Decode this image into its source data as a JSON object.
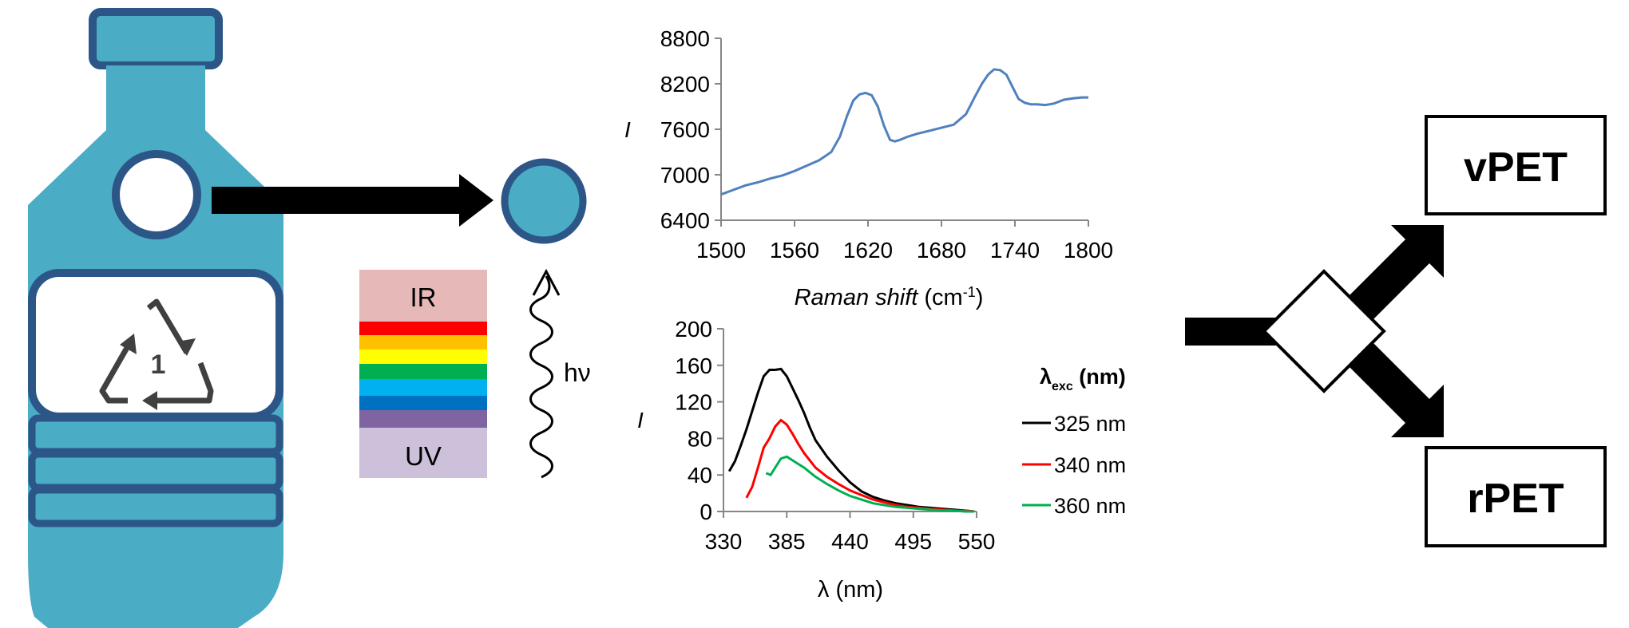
{
  "colors": {
    "bottle_fill": "#4bacc6",
    "bottle_outline": "#2c5687",
    "arrow": "#000000",
    "raman_line": "#4f81bd",
    "series_325": "#000000",
    "series_340": "#ff0000",
    "series_360": "#00b050"
  },
  "bottle": {
    "recycle_code": "1"
  },
  "spectrum": {
    "top_label": "IR",
    "bottom_label": "UV"
  },
  "photon": {
    "label": "hν"
  },
  "outputs": {
    "top": "vPET",
    "bottom": "rPET"
  },
  "chart_data": [
    {
      "type": "line",
      "ylabel": "I",
      "xlabel_italic": "Raman shift",
      "xlabel_unit": " (cm",
      "xlabel_sup": "-1",
      "xlabel_close": ")",
      "xlim": [
        1500,
        1800
      ],
      "ylim": [
        6400,
        8800
      ],
      "x_ticks": [
        "1500",
        "1560",
        "1620",
        "1680",
        "1740",
        "1800"
      ],
      "y_ticks": [
        "8800",
        "8200",
        "7600",
        "7000",
        "6400"
      ],
      "series": [
        {
          "x": [
            1500,
            1510,
            1520,
            1530,
            1540,
            1550,
            1560,
            1570,
            1580,
            1590,
            1597,
            1603,
            1608,
            1613,
            1618,
            1623,
            1628,
            1633,
            1638,
            1642,
            1646,
            1652,
            1660,
            1670,
            1680,
            1690,
            1700,
            1707,
            1713,
            1718,
            1723,
            1728,
            1733,
            1738,
            1743,
            1748,
            1753,
            1758,
            1765,
            1772,
            1780,
            1788,
            1795,
            1800
          ],
          "y": [
            6740,
            6800,
            6860,
            6900,
            6950,
            6990,
            7050,
            7120,
            7190,
            7300,
            7500,
            7780,
            7980,
            8060,
            8080,
            8050,
            7900,
            7650,
            7460,
            7440,
            7460,
            7500,
            7540,
            7580,
            7620,
            7660,
            7800,
            8020,
            8200,
            8320,
            8390,
            8380,
            8320,
            8160,
            8000,
            7950,
            7930,
            7930,
            7920,
            7940,
            7990,
            8010,
            8020,
            8020
          ]
        }
      ]
    },
    {
      "type": "line",
      "ylabel": "I",
      "xlabel": "λ (nm)",
      "xlim": [
        330,
        550
      ],
      "ylim": [
        0,
        200
      ],
      "x_ticks": [
        "330",
        "385",
        "440",
        "495",
        "550"
      ],
      "y_ticks": [
        "200",
        "160",
        "120",
        "80",
        "40",
        "0"
      ],
      "legend_title_main": "λ",
      "legend_title_sub": "exc",
      "legend_title_rest": " (nm)",
      "series": [
        {
          "name": "325 nm",
          "x": [
            335,
            340,
            345,
            350,
            355,
            360,
            365,
            370,
            375,
            380,
            385,
            390,
            395,
            400,
            405,
            410,
            420,
            430,
            440,
            450,
            460,
            470,
            480,
            490,
            500,
            510,
            520,
            530,
            540,
            548
          ],
          "y": [
            44,
            55,
            72,
            90,
            110,
            130,
            148,
            155,
            155,
            156,
            148,
            135,
            122,
            108,
            92,
            78,
            60,
            45,
            32,
            22,
            16,
            12,
            9,
            7,
            5,
            4,
            3,
            2,
            1,
            0
          ]
        },
        {
          "name": "340 nm",
          "x": [
            350,
            355,
            360,
            365,
            370,
            375,
            380,
            385,
            390,
            395,
            400,
            405,
            410,
            420,
            430,
            440,
            450,
            460,
            470,
            480,
            490,
            500,
            510,
            520,
            530,
            540,
            548
          ],
          "y": [
            15,
            27,
            48,
            70,
            80,
            93,
            100,
            95,
            85,
            74,
            64,
            56,
            48,
            38,
            30,
            23,
            18,
            13,
            10,
            7,
            5,
            4,
            3,
            2,
            1,
            1,
            0
          ]
        },
        {
          "name": "360 nm",
          "x": [
            367,
            371,
            375,
            380,
            385,
            390,
            395,
            400,
            405,
            410,
            420,
            430,
            440,
            450,
            460,
            470,
            480,
            490,
            500,
            510,
            520,
            530,
            540,
            548
          ],
          "y": [
            42,
            40,
            48,
            58,
            60,
            56,
            52,
            48,
            43,
            38,
            30,
            23,
            17,
            13,
            9,
            7,
            5,
            4,
            3,
            2,
            1,
            1,
            0,
            0
          ]
        }
      ]
    }
  ]
}
